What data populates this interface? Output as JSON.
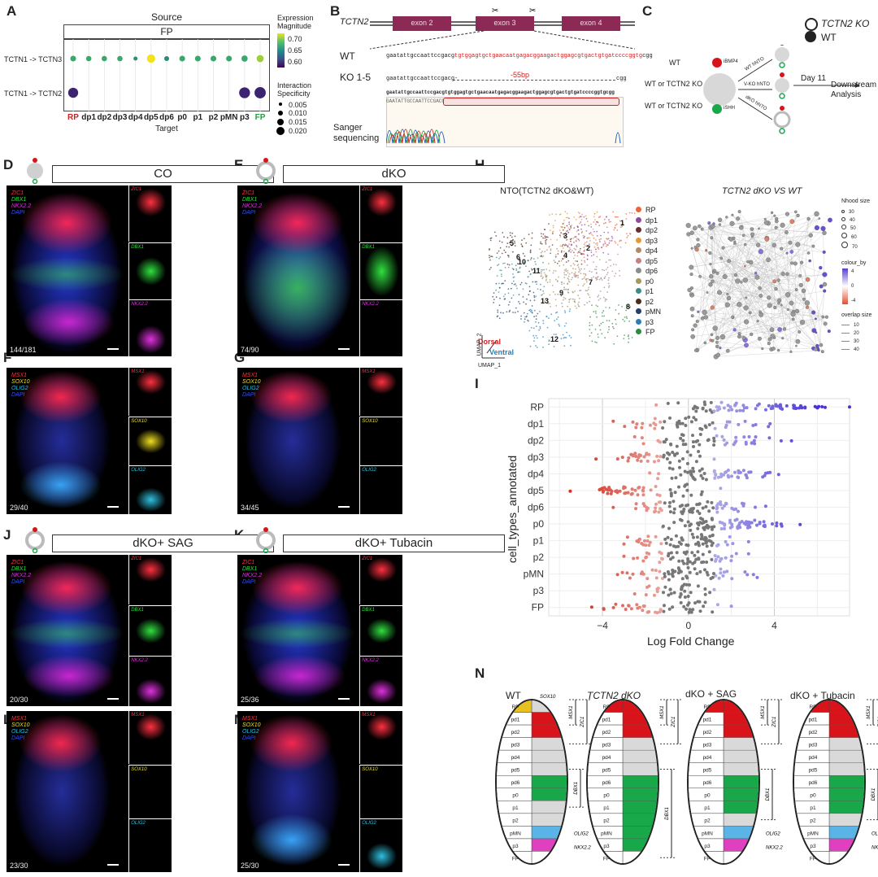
{
  "panels": [
    "A",
    "B",
    "C",
    "D",
    "E",
    "F",
    "G",
    "H",
    "I",
    "J",
    "K",
    "L",
    "M",
    "N"
  ],
  "panelA": {
    "header_source": "Source",
    "header_fp": "FP",
    "row_labels": [
      "TCTN1 -> TCTN3",
      "TCTN1 -> TCTN2"
    ],
    "targets": [
      "RP",
      "dp1",
      "dp2",
      "dp3",
      "dp4",
      "dp5",
      "dp6",
      "p0",
      "p1",
      "p2",
      "pMN",
      "p3",
      "FP"
    ],
    "xlabel": "Target",
    "legend_expr_title": "Expression Magnitude",
    "legend_expr_ticks": [
      "0.70",
      "0.65",
      "0.60"
    ],
    "legend_spec_title": "Interaction Specificity",
    "legend_spec_ticks": [
      "0.005",
      "0.010",
      "0.015",
      "0.020"
    ],
    "row1_colors": [
      "#3aa86b",
      "#3aa86b",
      "#3aa86b",
      "#3aa86b",
      "#2f8a76",
      "#f2e21a",
      "#2f8a76",
      "#3aa86b",
      "#3aa86b",
      "#3aa86b",
      "#3aa86b",
      "#3aa86b",
      "#9ccf3a"
    ],
    "row1_sizes": [
      0.006,
      0.005,
      0.005,
      0.005,
      0.002,
      0.012,
      0.004,
      0.006,
      0.006,
      0.006,
      0.006,
      0.007,
      0.009
    ],
    "row2_colors": [
      "#3d2470",
      "",
      "",
      "",
      "",
      "",
      "",
      "",
      "",
      "",
      "",
      "#3d2470",
      "#3d2470"
    ],
    "row2_sizes": [
      0.016,
      0,
      0,
      0,
      0,
      0,
      0,
      0,
      0,
      0,
      0,
      0.018,
      0.019
    ]
  },
  "panelB": {
    "gene": "TCTN2",
    "exons": [
      "exon 2",
      "exon 3",
      "exon 4"
    ],
    "wt_label": "WT",
    "wt_seq_black": "gaatattgccaattccgacg",
    "wt_seq_red": "tgtggagtgctgaacaatgagacggaagactggagcgtgactgtgatccccggtg",
    "wt_seq_end": "cgg",
    "ko_label": "KO 1-5",
    "ko_seq_start": "gaatattgccaattccgacg-",
    "ko_del": "-55bp",
    "ko_seq_end": "cgg",
    "sanger_top": "gaatattgccaattccgacgtgtggagtgctgaacaatgagacggaagactggagcgtgactgtgatccccggtgcgg",
    "sanger_bottom": "GAATATTGCCAATTCCGACG",
    "sanger_label": "Sanger sequencing"
  },
  "panelC": {
    "legend_ko": "TCTN2 KO",
    "legend_wt": "WT",
    "row_wt": "WT",
    "row_mid": "WT or TCTN2 KO",
    "row_bot": "WT or TCTN2 KO",
    "ibmp4": "iBMP4",
    "ishh": "iSHH",
    "arrow_top": "WT hNTO",
    "arrow_mid": "V-KO hNTO",
    "arrow_bot": "dKO hNTO",
    "day": "Day 11",
    "downstream": "Downstream Analysis"
  },
  "micro": [
    {
      "panel": "D",
      "title": "CO",
      "channels": [
        "ZIC1",
        "DBX1",
        "NKX2.2",
        "DAPI"
      ],
      "fraction": "144/181"
    },
    {
      "panel": "E",
      "title": "dKO",
      "channels": [
        "ZIC1",
        "DBX1",
        "NKX2.2",
        "DAPI"
      ],
      "fraction": "74/90"
    },
    {
      "panel": "F",
      "title": "",
      "channels": [
        "MSX1",
        "SOX10",
        "OLIG2",
        "DAPI"
      ],
      "fraction": "29/40"
    },
    {
      "panel": "G",
      "title": "",
      "channels": [
        "MSX1",
        "SOX10",
        "OLIG2",
        "DAPI"
      ],
      "fraction": "34/45"
    },
    {
      "panel": "J",
      "title": "dKO+ SAG",
      "channels": [
        "ZIC1",
        "DBX1",
        "NKX2.2",
        "DAPI"
      ],
      "fraction": "20/30"
    },
    {
      "panel": "K",
      "title": "dKO+ Tubacin",
      "channels": [
        "ZIC1",
        "DBX1",
        "NKX2.2",
        "DAPI"
      ],
      "fraction": "25/36"
    },
    {
      "panel": "L",
      "title": "",
      "channels": [
        "MSX1",
        "SOX10",
        "OLIG2",
        "DAPI"
      ],
      "fraction": "23/30"
    },
    {
      "panel": "M",
      "title": "",
      "channels": [
        "MSX1",
        "SOX10",
        "OLIG2",
        "DAPI"
      ],
      "fraction": "25/30"
    }
  ],
  "panelH": {
    "title_left": "NTO(TCTN2 dKO&WT)",
    "title_right": "TCTN2 dKO VS WT",
    "cluster_numbers": [
      "1",
      "2",
      "3",
      "4",
      "5",
      "6",
      "7",
      "8",
      "9",
      "10",
      "11",
      "12",
      "13"
    ],
    "legend": [
      "RP",
      "dp1",
      "dp2",
      "dp3",
      "dp4",
      "dp5",
      "dp6",
      "p0",
      "p1",
      "p2",
      "pMN",
      "p3",
      "FP"
    ],
    "legend_colors": [
      "#e8673a",
      "#8e4a9e",
      "#6b2d2d",
      "#e39a3b",
      "#b08a6a",
      "#c87f7f",
      "#8c8c8c",
      "#a89560",
      "#3f8a8a",
      "#4a2d20",
      "#233f6e",
      "#2a7db5",
      "#2d8a3e"
    ],
    "dorsal": "Dorsal",
    "ventral": "Ventral",
    "umap1": "UMAP_1",
    "umap2": "UMAP_2",
    "nhood_title": "Nhood size",
    "nhood_ticks": [
      "30",
      "40",
      "50",
      "60",
      "70"
    ],
    "colour_by": "colour_by",
    "colour_ticks": [
      "4",
      "0",
      "-4"
    ],
    "overlap_title": "overlap size",
    "overlap_ticks": [
      "10",
      "20",
      "30",
      "40"
    ]
  },
  "chart_data": {
    "type": "scatter",
    "title": "",
    "xlabel": "Log Fold Change",
    "ylabel": "cell_types_annotated",
    "categories": [
      "RP",
      "dp1",
      "dp2",
      "dp3",
      "dp4",
      "dp5",
      "dp6",
      "p0",
      "p1",
      "p2",
      "pMN",
      "p3",
      "FP"
    ],
    "xlim": [
      -6.5,
      7.5
    ],
    "xticks": [
      -4,
      0,
      4
    ],
    "spread": [
      {
        "cat": "RP",
        "min": -1.5,
        "max": 7.5,
        "n": 70
      },
      {
        "cat": "dp1",
        "min": -3.5,
        "max": 3.8,
        "n": 45
      },
      {
        "cat": "dp2",
        "min": -2.5,
        "max": 4.8,
        "n": 50
      },
      {
        "cat": "dp3",
        "min": -4.3,
        "max": 1.2,
        "n": 45
      },
      {
        "cat": "dp4",
        "min": -1.8,
        "max": 4.2,
        "n": 60
      },
      {
        "cat": "dp5",
        "min": -5.5,
        "max": 1.5,
        "n": 55
      },
      {
        "cat": "dp6",
        "min": -3.5,
        "max": 3.6,
        "n": 70
      },
      {
        "cat": "p0",
        "min": -1.2,
        "max": 5.2,
        "n": 80
      },
      {
        "cat": "p1",
        "min": -3.0,
        "max": 2.8,
        "n": 65
      },
      {
        "cat": "p2",
        "min": -3.0,
        "max": 2.8,
        "n": 55
      },
      {
        "cat": "pMN",
        "min": -3.3,
        "max": 3.2,
        "n": 55
      },
      {
        "cat": "p3",
        "min": -2.5,
        "max": 1.2,
        "n": 35
      },
      {
        "cat": "FP",
        "min": -4.5,
        "max": 2.0,
        "n": 45
      }
    ]
  },
  "panelN": {
    "titles": [
      "WT",
      "TCTN2 dKO",
      "dKO + SAG",
      "dKO + Tubacin"
    ],
    "domains": [
      "RP",
      "pd1",
      "pd2",
      "pd3",
      "pd4",
      "pd5",
      "pd6",
      "p0",
      "p1",
      "p2",
      "pMN",
      "p3",
      "FP"
    ],
    "markers": [
      "SOX10",
      "MSX1",
      "ZIC1",
      "DBX1",
      "OLIG2",
      "NKX2.2"
    ],
    "colors": {
      "rp": "#e8c020",
      "red": "#d8141a",
      "green": "#18a84a",
      "grey": "#d9d9d9",
      "blue": "#5ab4e8",
      "magenta": "#e040c0"
    }
  }
}
